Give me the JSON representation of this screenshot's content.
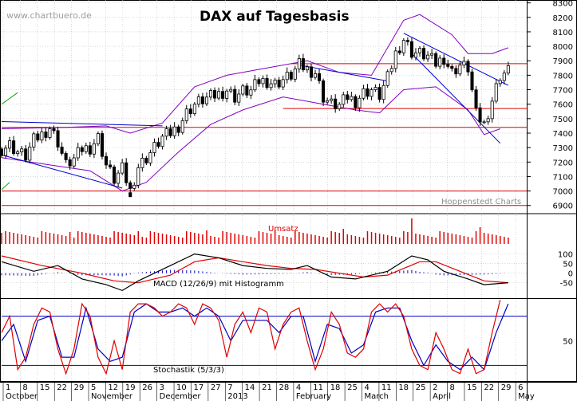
{
  "watermark": "www.chartbuero.de",
  "credit": "Hoppenstedt Charts",
  "colors": {
    "candle": "#000000",
    "bollinger": "#8000c0",
    "resistance": "#e00000",
    "trend": "#0000d0",
    "green_trend": "#00b000",
    "volume": "#e00000",
    "macd": "#000000",
    "signal": "#e00000",
    "histogram": "#0000c0",
    "stoch_k": "#e00000",
    "stoch_d": "#0000c0",
    "grid": "#c0c0c0",
    "stoch_level": "#0000c0"
  },
  "chart_data": [
    {
      "type": "candlestick",
      "title": "DAX auf Tagesbasis",
      "y_ticks": [
        6900,
        7000,
        7100,
        7200,
        7300,
        7400,
        7500,
        7600,
        7700,
        7800,
        7900,
        8000,
        8100,
        8200,
        8300
      ],
      "ylim": [
        6860,
        8320
      ],
      "x_ticks": [
        "1",
        "8",
        "15",
        "22",
        "29",
        "5",
        "12",
        "19",
        "26",
        "3",
        "10",
        "17",
        "27",
        "7",
        "14",
        "21",
        "28",
        "4",
        "11",
        "18",
        "25",
        "4",
        "11",
        "18",
        "25",
        "2",
        "8",
        "15",
        "22",
        "29",
        "6"
      ],
      "months": [
        "October",
        "November",
        "December",
        "2013",
        "February",
        "March",
        "April",
        "May"
      ],
      "horizontal_levels": [
        6900,
        7000,
        7440,
        7570,
        7880
      ],
      "close_path": [
        [
          0,
          7290
        ],
        [
          2,
          7320
        ],
        [
          4,
          7270
        ],
        [
          6,
          7240
        ],
        [
          8,
          7350
        ],
        [
          10,
          7390
        ],
        [
          12,
          7440
        ],
        [
          14,
          7340
        ],
        [
          16,
          7180
        ],
        [
          18,
          7220
        ],
        [
          20,
          7290
        ],
        [
          22,
          7300
        ],
        [
          24,
          7370
        ],
        [
          26,
          7180
        ],
        [
          28,
          7080
        ],
        [
          30,
          7150
        ],
        [
          32,
          7000
        ],
        [
          34,
          7170
        ],
        [
          36,
          7230
        ],
        [
          38,
          7300
        ],
        [
          40,
          7370
        ],
        [
          42,
          7400
        ],
        [
          44,
          7450
        ],
        [
          46,
          7540
        ],
        [
          48,
          7600
        ],
        [
          50,
          7630
        ],
        [
          52,
          7650
        ],
        [
          54,
          7670
        ],
        [
          56,
          7700
        ],
        [
          58,
          7650
        ],
        [
          60,
          7690
        ],
        [
          62,
          7690
        ],
        [
          64,
          7760
        ],
        [
          66,
          7760
        ],
        [
          68,
          7740
        ],
        [
          70,
          7770
        ],
        [
          72,
          7800
        ],
        [
          74,
          7870
        ],
        [
          76,
          7840
        ],
        [
          78,
          7820
        ],
        [
          80,
          7650
        ],
        [
          82,
          7600
        ],
        [
          84,
          7590
        ],
        [
          86,
          7650
        ],
        [
          88,
          7620
        ],
        [
          90,
          7680
        ],
        [
          92,
          7700
        ],
        [
          94,
          7660
        ],
        [
          96,
          7780
        ],
        [
          98,
          7950
        ],
        [
          100,
          8050
        ],
        [
          102,
          7960
        ],
        [
          104,
          7950
        ],
        [
          106,
          7930
        ],
        [
          108,
          7880
        ],
        [
          110,
          7920
        ],
        [
          112,
          7820
        ],
        [
          114,
          7870
        ],
        [
          116,
          7850
        ],
        [
          118,
          7530
        ],
        [
          120,
          7460
        ],
        [
          122,
          7630
        ],
        [
          124,
          7800
        ],
        [
          126,
          7830
        ]
      ],
      "bollinger_upper_path": [
        [
          0,
          7430
        ],
        [
          16,
          7440
        ],
        [
          26,
          7450
        ],
        [
          32,
          7400
        ],
        [
          40,
          7470
        ],
        [
          48,
          7720
        ],
        [
          56,
          7800
        ],
        [
          66,
          7850
        ],
        [
          76,
          7900
        ],
        [
          84,
          7820
        ],
        [
          92,
          7800
        ],
        [
          100,
          8180
        ],
        [
          104,
          8220
        ],
        [
          112,
          8080
        ],
        [
          116,
          7950
        ],
        [
          122,
          7950
        ],
        [
          126,
          7990
        ]
      ],
      "bollinger_lower_path": [
        [
          0,
          7230
        ],
        [
          12,
          7180
        ],
        [
          22,
          7140
        ],
        [
          30,
          7000
        ],
        [
          36,
          7060
        ],
        [
          44,
          7270
        ],
        [
          52,
          7460
        ],
        [
          60,
          7560
        ],
        [
          70,
          7650
        ],
        [
          80,
          7600
        ],
        [
          88,
          7560
        ],
        [
          94,
          7540
        ],
        [
          100,
          7700
        ],
        [
          108,
          7720
        ],
        [
          116,
          7560
        ],
        [
          120,
          7390
        ],
        [
          124,
          7430
        ]
      ],
      "trend_lines": [
        {
          "from": [
            0,
            7480
          ],
          "to": [
            40,
            7450
          ]
        },
        {
          "from": [
            0,
            7250
          ],
          "to": [
            30,
            7020
          ]
        },
        {
          "from": [
            74,
            7870
          ],
          "to": [
            96,
            7760
          ]
        },
        {
          "from": [
            100,
            8090
          ],
          "to": [
            126,
            7730
          ]
        },
        {
          "from": [
            102,
            7950
          ],
          "to": [
            124,
            7330
          ]
        }
      ]
    },
    {
      "type": "bar",
      "title": "Umsatz",
      "series": [
        {
          "name": "Umsatz",
          "values": []
        }
      ],
      "note": "volume bars without scale"
    },
    {
      "type": "line",
      "title": "MACD (12/26/9) mit Histogramm",
      "y_ticks": [
        100,
        50,
        0,
        -50
      ],
      "ylim": [
        -130,
        140
      ],
      "macd_path": [
        [
          0,
          60
        ],
        [
          8,
          10
        ],
        [
          14,
          40
        ],
        [
          20,
          -30
        ],
        [
          26,
          -60
        ],
        [
          30,
          -90
        ],
        [
          34,
          -40
        ],
        [
          42,
          40
        ],
        [
          48,
          100
        ],
        [
          54,
          80
        ],
        [
          60,
          40
        ],
        [
          66,
          25
        ],
        [
          72,
          20
        ],
        [
          76,
          40
        ],
        [
          82,
          -20
        ],
        [
          88,
          -30
        ],
        [
          92,
          -10
        ],
        [
          96,
          10
        ],
        [
          102,
          90
        ],
        [
          106,
          70
        ],
        [
          110,
          10
        ],
        [
          116,
          -30
        ],
        [
          120,
          -60
        ],
        [
          126,
          -50
        ]
      ],
      "signal_path": [
        [
          0,
          90
        ],
        [
          10,
          40
        ],
        [
          20,
          0
        ],
        [
          28,
          -40
        ],
        [
          34,
          -50
        ],
        [
          42,
          -10
        ],
        [
          48,
          60
        ],
        [
          54,
          80
        ],
        [
          60,
          60
        ],
        [
          66,
          40
        ],
        [
          72,
          25
        ],
        [
          78,
          20
        ],
        [
          84,
          0
        ],
        [
          90,
          -20
        ],
        [
          96,
          -10
        ],
        [
          104,
          60
        ],
        [
          108,
          60
        ],
        [
          114,
          10
        ],
        [
          120,
          -40
        ],
        [
          126,
          -50
        ]
      ]
    },
    {
      "type": "line",
      "title": "Stochastik (5/3/3)",
      "y_ticks": [
        50
      ],
      "ylim": [
        0,
        100
      ],
      "levels": [
        20,
        80
      ],
      "k_path": [
        [
          0,
          60
        ],
        [
          2,
          80
        ],
        [
          4,
          15
        ],
        [
          6,
          30
        ],
        [
          8,
          70
        ],
        [
          10,
          90
        ],
        [
          12,
          85
        ],
        [
          14,
          40
        ],
        [
          16,
          10
        ],
        [
          18,
          40
        ],
        [
          20,
          95
        ],
        [
          22,
          80
        ],
        [
          24,
          30
        ],
        [
          26,
          10
        ],
        [
          28,
          50
        ],
        [
          30,
          15
        ],
        [
          32,
          85
        ],
        [
          34,
          95
        ],
        [
          36,
          95
        ],
        [
          38,
          90
        ],
        [
          40,
          80
        ],
        [
          42,
          85
        ],
        [
          44,
          95
        ],
        [
          46,
          90
        ],
        [
          48,
          70
        ],
        [
          50,
          95
        ],
        [
          52,
          90
        ],
        [
          54,
          75
        ],
        [
          56,
          30
        ],
        [
          58,
          70
        ],
        [
          60,
          85
        ],
        [
          62,
          60
        ],
        [
          64,
          90
        ],
        [
          66,
          85
        ],
        [
          68,
          40
        ],
        [
          70,
          70
        ],
        [
          72,
          85
        ],
        [
          74,
          90
        ],
        [
          76,
          50
        ],
        [
          78,
          15
        ],
        [
          80,
          40
        ],
        [
          82,
          85
        ],
        [
          84,
          70
        ],
        [
          86,
          35
        ],
        [
          88,
          30
        ],
        [
          90,
          40
        ],
        [
          92,
          85
        ],
        [
          94,
          95
        ],
        [
          96,
          85
        ],
        [
          98,
          95
        ],
        [
          100,
          80
        ],
        [
          102,
          40
        ],
        [
          104,
          20
        ],
        [
          106,
          15
        ],
        [
          108,
          60
        ],
        [
          110,
          40
        ],
        [
          112,
          15
        ],
        [
          114,
          10
        ],
        [
          116,
          40
        ],
        [
          118,
          10
        ],
        [
          120,
          15
        ],
        [
          122,
          60
        ],
        [
          124,
          100
        ]
      ],
      "d_path": [
        [
          0,
          50
        ],
        [
          3,
          70
        ],
        [
          6,
          25
        ],
        [
          9,
          75
        ],
        [
          12,
          80
        ],
        [
          15,
          30
        ],
        [
          18,
          30
        ],
        [
          21,
          90
        ],
        [
          24,
          40
        ],
        [
          27,
          25
        ],
        [
          30,
          30
        ],
        [
          33,
          85
        ],
        [
          36,
          95
        ],
        [
          39,
          85
        ],
        [
          42,
          85
        ],
        [
          45,
          90
        ],
        [
          48,
          80
        ],
        [
          51,
          90
        ],
        [
          54,
          80
        ],
        [
          57,
          50
        ],
        [
          60,
          75
        ],
        [
          63,
          75
        ],
        [
          66,
          75
        ],
        [
          69,
          60
        ],
        [
          72,
          80
        ],
        [
          75,
          80
        ],
        [
          78,
          25
        ],
        [
          81,
          70
        ],
        [
          84,
          65
        ],
        [
          87,
          35
        ],
        [
          90,
          45
        ],
        [
          93,
          85
        ],
        [
          96,
          90
        ],
        [
          99,
          90
        ],
        [
          102,
          50
        ],
        [
          105,
          20
        ],
        [
          108,
          45
        ],
        [
          111,
          25
        ],
        [
          114,
          15
        ],
        [
          117,
          30
        ],
        [
          120,
          15
        ],
        [
          123,
          60
        ],
        [
          126,
          95
        ]
      ]
    }
  ]
}
